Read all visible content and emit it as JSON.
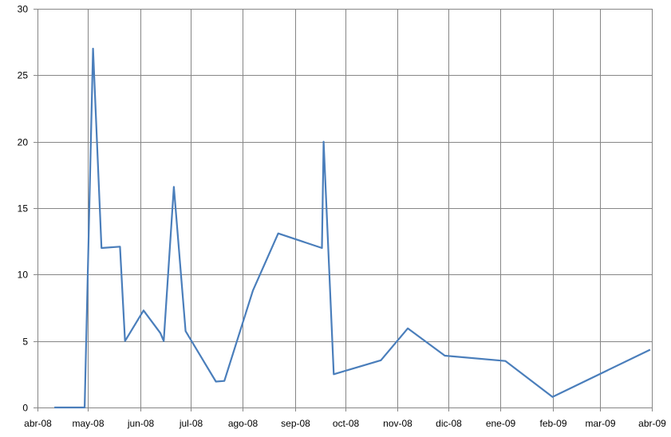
{
  "chart_data": {
    "type": "line",
    "title": "",
    "xlabel": "",
    "ylabel": "",
    "xlim": [
      "2008-04-01",
      "2009-04-01"
    ],
    "ylim": [
      0,
      30
    ],
    "grid": true,
    "legend": "none",
    "x_tick_labels": [
      "abr-08",
      "may-08",
      "jun-08",
      "jul-08",
      "ago-08",
      "sep-08",
      "oct-08",
      "nov-08",
      "dic-08",
      "ene-09",
      "feb-09",
      "mar-09",
      "abr-09"
    ],
    "x_tick_dates": [
      "2008-04-01",
      "2008-05-01",
      "2008-06-01",
      "2008-07-01",
      "2008-08-01",
      "2008-09-01",
      "2008-10-01",
      "2008-11-01",
      "2008-12-01",
      "2009-01-01",
      "2009-02-01",
      "2009-03-01",
      "2009-04-01"
    ],
    "y_ticks": [
      0,
      5,
      10,
      15,
      20,
      25,
      30
    ],
    "y_tick_labels": [
      "0",
      "5",
      "10",
      "15",
      "20",
      "25",
      "30"
    ],
    "series": [
      {
        "color": "#4a7ebb",
        "x": [
          "2008-04-11",
          "2008-04-29",
          "2008-05-04",
          "2008-05-09",
          "2008-05-20",
          "2008-05-23",
          "2008-06-03",
          "2008-06-13",
          "2008-06-15",
          "2008-06-21",
          "2008-06-28",
          "2008-07-16",
          "2008-07-21",
          "2008-08-07",
          "2008-08-22",
          "2008-09-17",
          "2008-09-18",
          "2008-09-24",
          "2008-10-22",
          "2008-11-07",
          "2008-11-29",
          "2009-01-04",
          "2009-02-01",
          "2009-03-31"
        ],
        "y": [
          0,
          0,
          27,
          12,
          12.1,
          5,
          7.3,
          5.6,
          5,
          16.6,
          5.75,
          1.95,
          2,
          8.8,
          13.1,
          12,
          20,
          2.5,
          3.55,
          5.95,
          3.9,
          3.5,
          0.8,
          4.35
        ]
      }
    ]
  },
  "colors": {
    "gridline": "#868686",
    "axis": "#868686"
  }
}
